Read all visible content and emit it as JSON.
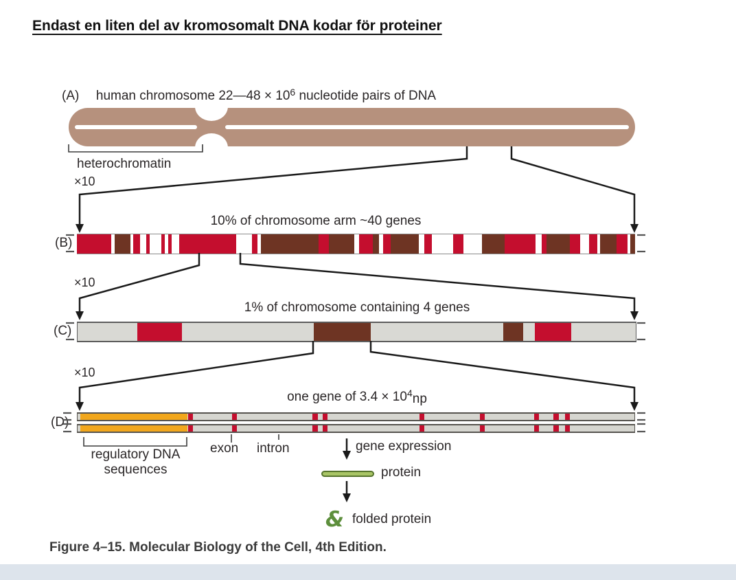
{
  "slide": {
    "title": "Endast en liten del av kromosomalt DNA kodar för proteiner",
    "caption": "Figure 4–15. Molecular Biology of the Cell, 4th Edition."
  },
  "figure": {
    "zoom_label": "×10",
    "panel_a": {
      "label": "(A)",
      "heading_prefix": "human chromosome 22—48 × 10",
      "heading_exp": "6",
      "heading_suffix": " nucleotide pairs of DNA",
      "heterochromatin_label": "heterochromatin"
    },
    "panel_b": {
      "label": "(B)",
      "heading": "10% of chromosome arm ~40 genes",
      "segments": [
        {
          "c": "red",
          "w": 55
        },
        {
          "c": "white",
          "w": 6
        },
        {
          "c": "brown",
          "w": 25
        },
        {
          "c": "white",
          "w": 4
        },
        {
          "c": "red",
          "w": 11
        },
        {
          "c": "white",
          "w": 10
        },
        {
          "c": "red",
          "w": 6
        },
        {
          "c": "white",
          "w": 18
        },
        {
          "c": "red",
          "w": 6
        },
        {
          "c": "white",
          "w": 5
        },
        {
          "c": "red",
          "w": 6
        },
        {
          "c": "white",
          "w": 12
        },
        {
          "c": "red",
          "w": 91
        },
        {
          "c": "white",
          "w": 25
        },
        {
          "c": "red",
          "w": 9
        },
        {
          "c": "white",
          "w": 6
        },
        {
          "c": "brown",
          "w": 92
        },
        {
          "c": "red",
          "w": 17
        },
        {
          "c": "brown",
          "w": 40
        },
        {
          "c": "white",
          "w": 8
        },
        {
          "c": "red",
          "w": 22
        },
        {
          "c": "brown",
          "w": 10
        },
        {
          "c": "white",
          "w": 6
        },
        {
          "c": "red",
          "w": 13
        },
        {
          "c": "brown",
          "w": 45
        },
        {
          "c": "white",
          "w": 8
        },
        {
          "c": "red",
          "w": 12
        },
        {
          "c": "white",
          "w": 35
        },
        {
          "c": "red",
          "w": 16
        },
        {
          "c": "white",
          "w": 30
        },
        {
          "c": "brown",
          "w": 36
        },
        {
          "c": "red",
          "w": 50
        },
        {
          "c": "white",
          "w": 9
        },
        {
          "c": "red",
          "w": 8
        },
        {
          "c": "brown",
          "w": 38
        },
        {
          "c": "red",
          "w": 16
        },
        {
          "c": "white",
          "w": 14
        },
        {
          "c": "red",
          "w": 13
        },
        {
          "c": "white",
          "w": 5
        },
        {
          "c": "brown",
          "w": 26
        },
        {
          "c": "red",
          "w": 18
        },
        {
          "c": "white",
          "w": 4
        },
        {
          "c": "brown",
          "w": 8
        }
      ]
    },
    "panel_c": {
      "label": "(C)",
      "heading": "1% of chromosome containing 4 genes",
      "segments": [
        {
          "c": "gray",
          "w": 87
        },
        {
          "c": "red",
          "w": 65
        },
        {
          "c": "gray",
          "w": 192
        },
        {
          "c": "brown",
          "w": 82
        },
        {
          "c": "gray",
          "w": 193
        },
        {
          "c": "brown",
          "w": 29
        },
        {
          "c": "gray",
          "w": 17
        },
        {
          "c": "red",
          "w": 53
        },
        {
          "c": "gray",
          "w": 94
        }
      ]
    },
    "panel_d": {
      "label": "(D)",
      "heading_prefix": "one gene of 3.4 × 10",
      "heading_exp": "4",
      "heading_suffix": "np",
      "orange": {
        "start_pct": 0.5,
        "end_pct": 19.7
      },
      "exon_stripes_pct": [
        19.8,
        27.7,
        42.2,
        44.0,
        61.4,
        72.2,
        82.0,
        85.5,
        87.5
      ],
      "regulatory_label_line1": "regulatory DNA",
      "regulatory_label_line2": "sequences",
      "exon_label": "exon",
      "intron_label": "intron",
      "gene_expression_label": "gene expression",
      "protein_label": "protein",
      "folded_protein_label": "folded protein",
      "folded_protein_icon": "&"
    },
    "colors": {
      "red": "#c40e2e",
      "brown": "#6e3423",
      "gray": "#d9d9d4",
      "white": "#ffffff",
      "orange": "#f2a71c",
      "chromosome": "#b6917d",
      "green_fill": "#a9c566",
      "green_border": "#55732c",
      "green_icon": "#5d8f3c",
      "line": "#1a1a1a"
    }
  }
}
